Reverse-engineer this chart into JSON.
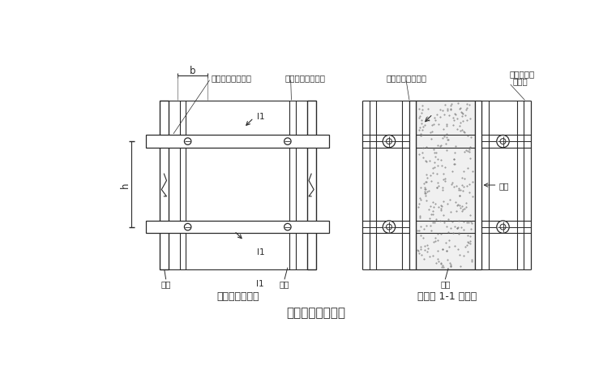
{
  "bg_color": "#ffffff",
  "line_color": "#2a2a2a",
  "title": "墙模板设计简图。",
  "left_diagram_title": "墙模板正立面图",
  "right_diagram_title": "墙模板 1-1 剪面图",
  "label_b": "b",
  "label_h": "h",
  "label_l1": "l1",
  "label_main_purlin_L": "主樾（图形鑰管）",
  "label_sec_purlin_L": "次樾（图形鑰管）",
  "label_main_purlin_R": "主樾（图形鑰管）",
  "label_sec_purlin_R_line1": "次樾（图形",
  "label_sec_purlin_R_line2": "鑰管）",
  "label_faceplate": "面板",
  "label_bolt": "螺栓",
  "font_size_small": 7.5,
  "font_size_title": 9,
  "font_size_caption": 10,
  "font_family": "SimSun"
}
